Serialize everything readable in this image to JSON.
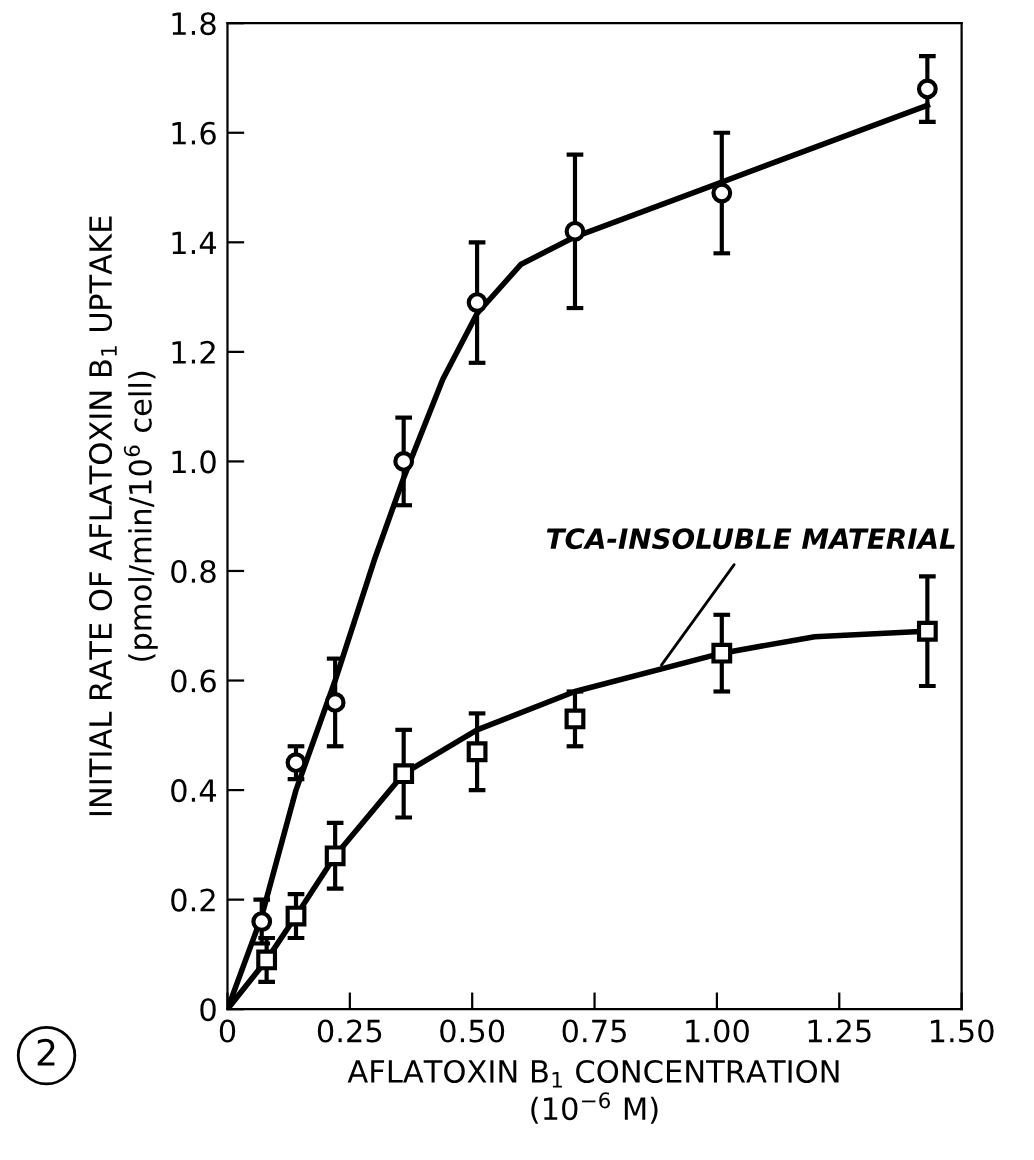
{
  "chart_data": {
    "type": "scatter",
    "xlabel": "AFLATOXIN B$_{1}$ CONCENTRATION\n(10$^{−6}$ M)",
    "ylabel": "INITIAL RATE OF AFLATOXIN B$_{1}$ UPTAKE\n(pmol/min/10$^{6}$ cell)",
    "xlim": [
      0,
      1.5
    ],
    "ylim": [
      0,
      1.8
    ],
    "xticks": [
      0,
      0.25,
      {
        "value": 0.5,
        "label": "0.50"
      },
      0.75,
      {
        "value": 1.0,
        "label": "1.00"
      },
      1.25,
      {
        "value": 1.5,
        "label": "1.50"
      }
    ],
    "yticks": [
      0,
      0.2,
      0.4,
      0.6,
      0.8,
      {
        "value": 1.0,
        "label": "1.0"
      },
      1.2,
      1.4,
      1.6,
      1.8
    ],
    "grid": false,
    "legend": false,
    "series": [
      {
        "marker": "circle",
        "color": "#000000",
        "x": [
          0.07,
          0.14,
          0.22,
          0.36,
          0.51,
          0.71,
          1.01,
          1.43
        ],
        "values": [
          0.16,
          0.45,
          0.56,
          1.0,
          1.29,
          1.42,
          1.49,
          1.68
        ],
        "errors": [
          0.04,
          0.03,
          0.08,
          0.08,
          0.11,
          0.14,
          0.11,
          0.06
        ]
      },
      {
        "marker": "square",
        "color": "#000000",
        "x": [
          0.08,
          0.14,
          0.22,
          0.36,
          0.51,
          0.71,
          1.01,
          1.43
        ],
        "values": [
          0.09,
          0.17,
          0.28,
          0.43,
          0.47,
          0.53,
          0.65,
          0.69
        ],
        "errors": [
          0.04,
          0.04,
          0.06,
          0.08,
          0.07,
          0.05,
          0.07,
          0.1
        ]
      },
      {
        "type": "line",
        "marker": "none",
        "line_style": "solid",
        "color": "#000000",
        "x": [
          0,
          0.07,
          0.14,
          0.22,
          0.3,
          0.36,
          0.44,
          0.51,
          0.6,
          0.71,
          1.01,
          1.43
        ],
        "values": [
          0,
          0.17,
          0.4,
          0.6,
          0.82,
          0.97,
          1.15,
          1.27,
          1.36,
          1.41,
          1.51,
          1.65
        ]
      },
      {
        "type": "line",
        "marker": "none",
        "line_style": "solid",
        "color": "#000000",
        "x": [
          0,
          0.08,
          0.14,
          0.22,
          0.36,
          0.51,
          0.71,
          1.01,
          1.2,
          1.43
        ],
        "values": [
          0,
          0.09,
          0.17,
          0.28,
          0.43,
          0.51,
          0.58,
          0.65,
          0.68,
          0.69
        ]
      }
    ],
    "annotations": [
      {
        "text": "TCA-INSOLUBLE MATERIAL",
        "x": 0.88,
        "y": 0.62
      },
      "2"
    ]
  }
}
